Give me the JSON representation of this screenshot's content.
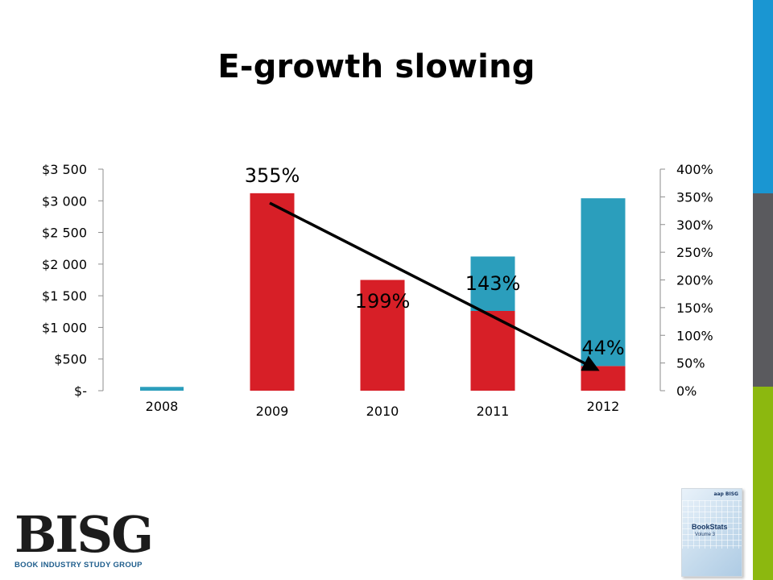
{
  "title": "E-growth slowing",
  "colors": {
    "print_bar": "#d71f27",
    "ebook_bar": "#2b9ebc",
    "stripe_top": "#1a96d2",
    "stripe_mid": "#5a5a5e",
    "stripe_bottom": "#8cb80f",
    "arrow": "#000000"
  },
  "logo": {
    "word": "BISG",
    "tagline": "BOOK INDUSTRY STUDY GROUP"
  },
  "book_cover": {
    "publisher": "aap  BISG",
    "title": "BookStats",
    "volume": "Volume 3"
  },
  "chart_data": {
    "type": "bar",
    "categories": [
      "2008",
      "2009",
      "2010",
      "2011",
      "2012"
    ],
    "series": [
      {
        "values": [
          60,
          3120,
          1750,
          1260,
          390
        ]
      },
      {
        "values": [
          0,
          0,
          0,
          860,
          2650
        ]
      }
    ],
    "left_axis": {
      "ticks": [
        "$3 500",
        "$3 000",
        "$2 500",
        "$2 000",
        "$1 500",
        "$1 000",
        "$500",
        "$-"
      ],
      "tick_values": [
        3500,
        3000,
        2500,
        2000,
        1500,
        1000,
        500,
        0
      ],
      "ylim": [
        0,
        3500
      ]
    },
    "right_axis": {
      "ticks": [
        "400%",
        "350%",
        "300%",
        "250%",
        "200%",
        "150%",
        "100%",
        "50%",
        "0%"
      ],
      "tick_values": [
        400,
        350,
        300,
        250,
        200,
        150,
        100,
        50,
        0
      ],
      "ylim": [
        0,
        400
      ]
    },
    "growth_labels": [
      {
        "category": "2009",
        "text": "355%"
      },
      {
        "category": "2010",
        "text": "199%"
      },
      {
        "category": "2011",
        "text": "143%"
      },
      {
        "category": "2012",
        "text": "44%"
      }
    ],
    "trend_arrow": {
      "from": "2009",
      "to": "2012",
      "direction": "down"
    },
    "grid": false,
    "legend": "none"
  }
}
